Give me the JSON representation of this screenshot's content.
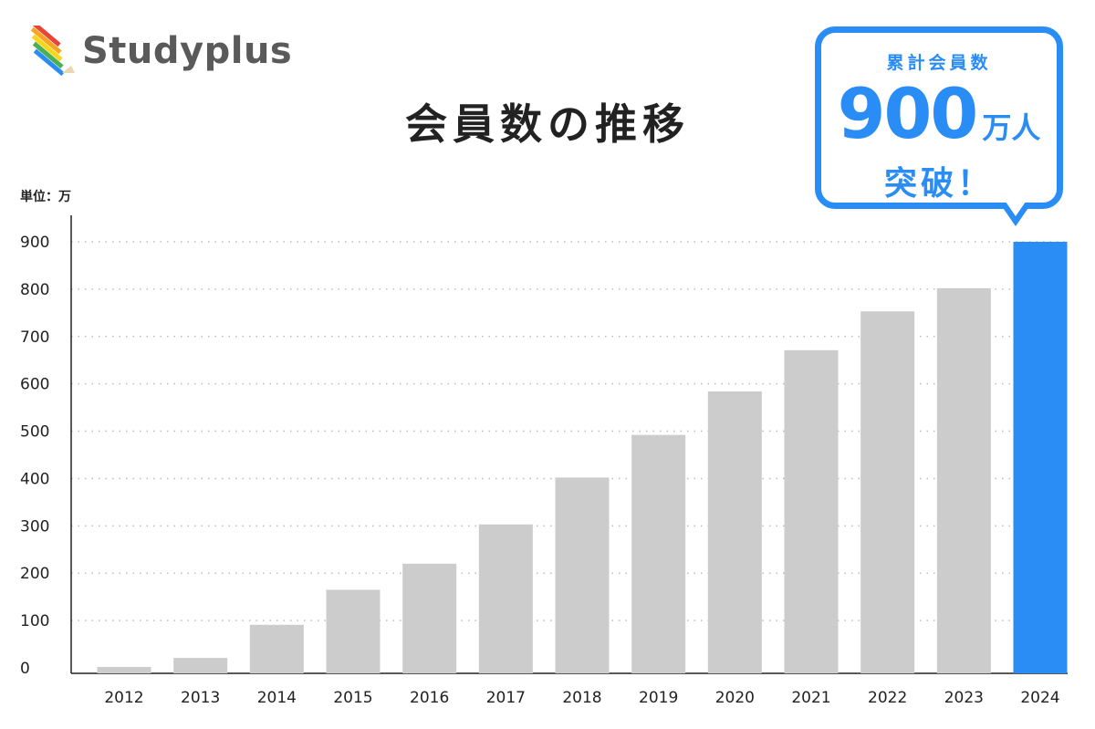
{
  "brand": {
    "name": "Studyplus",
    "icon": "pencil-stripes-logo-icon",
    "stripe_colors": [
      "#e8443a",
      "#f5a623",
      "#f8d61c",
      "#4caf50",
      "#2a8cf5"
    ]
  },
  "callout": {
    "label": "累計会員数",
    "number": "900",
    "unit": "万人",
    "suffix": "突破！"
  },
  "colors": {
    "accent": "#2a8cf5",
    "bar": "#cccccc"
  },
  "chart_data": {
    "type": "bar",
    "title": "会員数の推移",
    "unit_label": "単位：万",
    "categories": [
      "2012",
      "2013",
      "2014",
      "2015",
      "2016",
      "2017",
      "2018",
      "2019",
      "2020",
      "2021",
      "2022",
      "2023",
      "2024"
    ],
    "values": [
      2,
      21,
      91,
      165,
      220,
      303,
      402,
      492,
      584,
      671,
      753,
      802,
      900
    ],
    "highlight_index": 12,
    "yticks": [
      0,
      100,
      200,
      300,
      400,
      500,
      600,
      700,
      800,
      900
    ],
    "ylim": [
      0,
      900
    ],
    "grid": "dotted horizontal",
    "xlabel": "",
    "ylabel": ""
  }
}
